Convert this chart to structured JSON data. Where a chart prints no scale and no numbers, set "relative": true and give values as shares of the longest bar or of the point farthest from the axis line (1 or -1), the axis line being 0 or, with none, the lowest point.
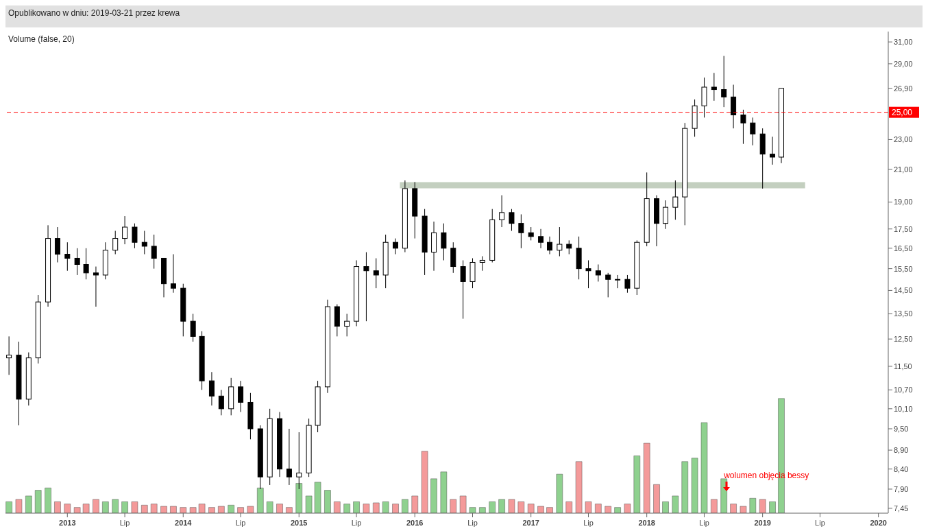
{
  "chart_data": [
    {
      "type": "candlestick",
      "title": "Opublikowano w dniu: 2019-03-21 przez krewa",
      "color": "#000000",
      "x": [
        "2012-07",
        "2012-08",
        "2012-09",
        "2012-10",
        "2012-11",
        "2012-12",
        "2013-01",
        "2013-02",
        "2013-03",
        "2013-04",
        "2013-05",
        "2013-06",
        "2013-07",
        "2013-08",
        "2013-09",
        "2013-10",
        "2013-11",
        "2013-12",
        "2014-01",
        "2014-02",
        "2014-03",
        "2014-04",
        "2014-05",
        "2014-06",
        "2014-07",
        "2014-08",
        "2014-09",
        "2014-10",
        "2014-11",
        "2014-12",
        "2015-01",
        "2015-02",
        "2015-03",
        "2015-04",
        "2015-05",
        "2015-06",
        "2015-07",
        "2015-08",
        "2015-09",
        "2015-10",
        "2015-11",
        "2015-12",
        "2016-01",
        "2016-02",
        "2016-03",
        "2016-04",
        "2016-05",
        "2016-06",
        "2016-07",
        "2016-08",
        "2016-09",
        "2016-10",
        "2016-11",
        "2016-12",
        "2017-01",
        "2017-02",
        "2017-03",
        "2017-04",
        "2017-05",
        "2017-06",
        "2017-07",
        "2017-08",
        "2017-09",
        "2017-10",
        "2017-11",
        "2017-12",
        "2018-01",
        "2018-02",
        "2018-03",
        "2018-04",
        "2018-05",
        "2018-06",
        "2018-07",
        "2018-08",
        "2018-09",
        "2018-10",
        "2018-11",
        "2018-12",
        "2019-01",
        "2019-02",
        "2019-03"
      ],
      "ohlc": [
        [
          11.8,
          12.6,
          11.2,
          11.9
        ],
        [
          11.9,
          12.4,
          9.6,
          10.4
        ],
        [
          10.4,
          12.0,
          10.2,
          11.8
        ],
        [
          11.8,
          14.3,
          11.6,
          14.0
        ],
        [
          14.0,
          17.7,
          13.8,
          17.0
        ],
        [
          17.0,
          17.6,
          15.8,
          16.2
        ],
        [
          16.2,
          16.8,
          15.4,
          16.0
        ],
        [
          16.0,
          16.5,
          15.2,
          15.7
        ],
        [
          15.7,
          16.5,
          15.0,
          15.3
        ],
        [
          15.3,
          15.6,
          13.8,
          15.2
        ],
        [
          15.2,
          16.8,
          15.0,
          16.4
        ],
        [
          16.4,
          17.4,
          16.2,
          17.0
        ],
        [
          17.0,
          18.2,
          16.7,
          17.6
        ],
        [
          17.6,
          17.8,
          16.5,
          16.8
        ],
        [
          16.8,
          17.4,
          16.2,
          16.6
        ],
        [
          16.6,
          17.2,
          15.5,
          16.0
        ],
        [
          16.0,
          16.0,
          14.2,
          14.8
        ],
        [
          14.8,
          16.2,
          14.4,
          14.6
        ],
        [
          14.6,
          14.8,
          12.6,
          13.2
        ],
        [
          13.2,
          13.5,
          12.4,
          12.6
        ],
        [
          12.6,
          12.8,
          10.7,
          11.0
        ],
        [
          11.0,
          11.3,
          10.2,
          10.5
        ],
        [
          10.5,
          10.7,
          9.9,
          10.1
        ],
        [
          10.1,
          11.1,
          9.9,
          10.8
        ],
        [
          10.8,
          11.0,
          10.0,
          10.3
        ],
        [
          10.3,
          10.6,
          9.2,
          9.5
        ],
        [
          9.5,
          9.6,
          7.9,
          8.2
        ],
        [
          8.2,
          10.1,
          8.0,
          9.8
        ],
        [
          9.8,
          10.0,
          8.2,
          8.4
        ],
        [
          8.4,
          9.5,
          8.0,
          8.2
        ],
        [
          8.2,
          9.4,
          7.9,
          8.3
        ],
        [
          8.3,
          9.8,
          8.2,
          9.6
        ],
        [
          9.6,
          11.0,
          9.4,
          10.8
        ],
        [
          10.8,
          14.1,
          10.6,
          13.8
        ],
        [
          13.8,
          13.9,
          12.6,
          13.0
        ],
        [
          13.0,
          13.5,
          12.6,
          13.2
        ],
        [
          13.2,
          15.9,
          13.0,
          15.6
        ],
        [
          15.6,
          16.3,
          13.2,
          15.4
        ],
        [
          15.4,
          16.0,
          14.6,
          15.2
        ],
        [
          15.2,
          17.2,
          14.6,
          16.8
        ],
        [
          16.8,
          17.0,
          16.2,
          16.5
        ],
        [
          16.5,
          20.3,
          16.3,
          19.8
        ],
        [
          19.8,
          20.2,
          17.0,
          18.2
        ],
        [
          18.2,
          18.6,
          15.2,
          16.3
        ],
        [
          16.3,
          17.9,
          15.4,
          17.3
        ],
        [
          17.3,
          17.8,
          15.9,
          16.5
        ],
        [
          16.5,
          16.8,
          15.3,
          15.6
        ],
        [
          15.6,
          15.9,
          13.3,
          14.9
        ],
        [
          14.9,
          16.0,
          14.6,
          15.8
        ],
        [
          15.8,
          16.1,
          15.4,
          15.9
        ],
        [
          15.9,
          18.6,
          15.8,
          18.0
        ],
        [
          18.0,
          19.4,
          17.6,
          18.4
        ],
        [
          18.4,
          18.6,
          17.4,
          17.8
        ],
        [
          17.8,
          18.3,
          16.5,
          17.3
        ],
        [
          17.3,
          17.6,
          16.9,
          17.1
        ],
        [
          17.1,
          17.5,
          16.5,
          16.8
        ],
        [
          16.8,
          17.1,
          16.2,
          16.4
        ],
        [
          16.4,
          17.6,
          16.1,
          16.7
        ],
        [
          16.7,
          16.9,
          16.2,
          16.5
        ],
        [
          16.5,
          17.1,
          15.0,
          15.5
        ],
        [
          15.5,
          15.9,
          14.6,
          15.4
        ],
        [
          15.4,
          15.7,
          14.9,
          15.2
        ],
        [
          15.2,
          15.3,
          14.2,
          15.0
        ],
        [
          15.0,
          15.2,
          14.6,
          15.0
        ],
        [
          15.0,
          15.2,
          14.4,
          14.6
        ],
        [
          14.6,
          16.9,
          14.3,
          16.8
        ],
        [
          16.8,
          20.8,
          16.6,
          19.2
        ],
        [
          19.2,
          19.4,
          16.6,
          17.8
        ],
        [
          17.8,
          19.1,
          17.5,
          18.7
        ],
        [
          18.7,
          20.3,
          18.0,
          19.3
        ],
        [
          19.3,
          24.2,
          17.7,
          23.8
        ],
        [
          23.8,
          26.0,
          23.2,
          25.5
        ],
        [
          25.5,
          27.8,
          24.6,
          27.0
        ],
        [
          27.0,
          28.2,
          25.9,
          26.8
        ],
        [
          26.8,
          29.7,
          25.4,
          26.2
        ],
        [
          26.2,
          27.2,
          23.8,
          24.8
        ],
        [
          24.8,
          25.2,
          22.7,
          24.2
        ],
        [
          24.2,
          24.6,
          22.6,
          23.4
        ],
        [
          23.4,
          23.8,
          19.8,
          22.0
        ],
        [
          22.0,
          23.2,
          21.3,
          21.8
        ],
        [
          21.8,
          26.9,
          21.4,
          26.9
        ]
      ],
      "series": [
        {
          "type": "line",
          "x": [
            "2015-11-15",
            "2019-05-15"
          ],
          "values": [
            20,
            20
          ],
          "color": "#c3cfbf"
        }
      ],
      "xlim": [
        "2012-06-20",
        "2020-02-01"
      ],
      "xticks": [
        {
          "value": "2013-01-01",
          "label": "2013"
        },
        {
          "value": "2013-07-01",
          "label": "Lip"
        },
        {
          "value": "2014-01-01",
          "label": "2014"
        },
        {
          "value": "2014-07-01",
          "label": "Lip"
        },
        {
          "value": "2015-01-01",
          "label": "2015"
        },
        {
          "value": "2015-07-01",
          "label": "Lip"
        },
        {
          "value": "2016-01-01",
          "label": "2016"
        },
        {
          "value": "2016-07-01",
          "label": "Lip"
        },
        {
          "value": "2017-01-01",
          "label": "2017"
        },
        {
          "value": "2017-07-01",
          "label": "Lip"
        },
        {
          "value": "2018-01-01",
          "label": "2018"
        },
        {
          "value": "2018-07-01",
          "label": "Lip"
        },
        {
          "value": "2019-01-01",
          "label": "2019"
        },
        {
          "value": "2019-07-01",
          "label": "Lip"
        },
        {
          "value": "2020-01-01",
          "label": "2020"
        }
      ],
      "ylim": [
        7.34,
        32.0
      ],
      "log": "y",
      "yticks": [
        {
          "value": 7.45,
          "label": "7,45"
        },
        {
          "value": 7.9,
          "label": "7,90"
        },
        {
          "value": 8.4,
          "label": "8,40"
        },
        {
          "value": 8.9,
          "label": "8,90"
        },
        {
          "value": 9.5,
          "label": "9,50"
        },
        {
          "value": 10.1,
          "label": "10,10"
        },
        {
          "value": 10.7,
          "label": "10,70"
        },
        {
          "value": 11.5,
          "label": "11,50"
        },
        {
          "value": 12.5,
          "label": "12,50"
        },
        {
          "value": 13.5,
          "label": "13,50"
        },
        {
          "value": 14.5,
          "label": "14,50"
        },
        {
          "value": 15.5,
          "label": "15,50"
        },
        {
          "value": 16.5,
          "label": "16,50"
        },
        {
          "value": 17.5,
          "label": "17,50"
        },
        {
          "value": 19,
          "label": "19,00"
        },
        {
          "value": 21,
          "label": "21,00"
        },
        {
          "value": 23,
          "label": "23,00"
        },
        {
          "value": 26.9,
          "label": "26,90"
        },
        {
          "value": 29,
          "label": "29,00"
        },
        {
          "value": 31,
          "label": "31,00"
        }
      ],
      "ref_lines": [
        {
          "axis": "y",
          "value": 25,
          "label": "25,00",
          "color": "#ff0000",
          "line_style": "dashed"
        }
      ]
    },
    {
      "type": "bar",
      "title": "Volume (false, 20)",
      "relative": true,
      "tick_labels": false,
      "x": [
        "2012-07",
        "2012-08",
        "2012-09",
        "2012-10",
        "2012-11",
        "2012-12",
        "2013-01",
        "2013-02",
        "2013-03",
        "2013-04",
        "2013-05",
        "2013-06",
        "2013-07",
        "2013-08",
        "2013-09",
        "2013-10",
        "2013-11",
        "2013-12",
        "2014-01",
        "2014-02",
        "2014-03",
        "2014-04",
        "2014-05",
        "2014-06",
        "2014-07",
        "2014-08",
        "2014-09",
        "2014-10",
        "2014-11",
        "2014-12",
        "2015-01",
        "2015-02",
        "2015-03",
        "2015-04",
        "2015-05",
        "2015-06",
        "2015-07",
        "2015-08",
        "2015-09",
        "2015-10",
        "2015-11",
        "2015-12",
        "2016-01",
        "2016-02",
        "2016-03",
        "2016-04",
        "2016-05",
        "2016-06",
        "2016-07",
        "2016-08",
        "2016-09",
        "2016-10",
        "2016-11",
        "2016-12",
        "2017-01",
        "2017-02",
        "2017-03",
        "2017-04",
        "2017-05",
        "2017-06",
        "2017-07",
        "2017-08",
        "2017-09",
        "2017-10",
        "2017-11",
        "2017-12",
        "2018-01",
        "2018-02",
        "2018-03",
        "2018-04",
        "2018-05",
        "2018-06",
        "2018-07",
        "2018-08",
        "2018-09",
        "2018-10",
        "2018-11",
        "2018-12",
        "2019-01",
        "2019-02",
        "2019-03"
      ],
      "values": [
        0.1,
        0.12,
        0.15,
        0.2,
        0.22,
        0.1,
        0.08,
        0.05,
        0.08,
        0.12,
        0.1,
        0.12,
        0.1,
        0.1,
        0.07,
        0.08,
        0.06,
        0.06,
        0.05,
        0.05,
        0.08,
        0.05,
        0.06,
        0.07,
        0.05,
        0.06,
        0.22,
        0.1,
        0.08,
        0.05,
        0.26,
        0.15,
        0.27,
        0.2,
        0.1,
        0.08,
        0.1,
        0.08,
        0.09,
        0.1,
        0.08,
        0.12,
        0.15,
        0.54,
        0.3,
        0.36,
        0.12,
        0.15,
        0.05,
        0.05,
        0.1,
        0.12,
        0.12,
        0.1,
        0.08,
        0.06,
        0.05,
        0.34,
        0.1,
        0.45,
        0.1,
        0.08,
        0.06,
        0.05,
        0.08,
        0.5,
        0.61,
        0.25,
        0.1,
        0.15,
        0.45,
        0.48,
        0.79,
        0.12,
        0.3,
        0.08,
        0.06,
        0.13,
        0.12,
        0.1,
        1
      ],
      "colors": [
        "#8fd18f",
        "#f49a9a",
        "#8fd18f",
        "#8fd18f",
        "#8fd18f",
        "#f49a9a",
        "#f49a9a",
        "#f49a9a",
        "#f49a9a",
        "#f49a9a",
        "#8fd18f",
        "#8fd18f",
        "#8fd18f",
        "#f49a9a",
        "#f49a9a",
        "#f49a9a",
        "#f49a9a",
        "#f49a9a",
        "#f49a9a",
        "#f49a9a",
        "#f49a9a",
        "#f49a9a",
        "#f49a9a",
        "#8fd18f",
        "#f49a9a",
        "#f49a9a",
        "#8fd18f",
        "#8fd18f",
        "#f49a9a",
        "#f49a9a",
        "#8fd18f",
        "#8fd18f",
        "#8fd18f",
        "#8fd18f",
        "#f49a9a",
        "#8fd18f",
        "#8fd18f",
        "#f49a9a",
        "#f49a9a",
        "#8fd18f",
        "#f49a9a",
        "#8fd18f",
        "#f49a9a",
        "#f49a9a",
        "#8fd18f",
        "#8fd18f",
        "#f49a9a",
        "#f49a9a",
        "#8fd18f",
        "#8fd18f",
        "#8fd18f",
        "#8fd18f",
        "#f49a9a",
        "#f49a9a",
        "#f49a9a",
        "#f49a9a",
        "#f49a9a",
        "#8fd18f",
        "#f49a9a",
        "#f49a9a",
        "#f49a9a",
        "#f49a9a",
        "#f49a9a",
        "#8fd18f",
        "#f49a9a",
        "#8fd18f",
        "#f49a9a",
        "#f49a9a",
        "#8fd18f",
        "#8fd18f",
        "#8fd18f",
        "#8fd18f",
        "#8fd18f",
        "#f49a9a",
        "#8fd18f",
        "#f49a9a",
        "#f49a9a",
        "#8fd18f",
        "#f49a9a",
        "#8fd18f",
        "#8fd18f"
      ],
      "xlim": [
        "2012-06-20",
        "2020-02-01"
      ],
      "annotations": [
        {
          "text": "wolumen objęcia bessy",
          "x": "2018-09"
        }
      ]
    }
  ]
}
